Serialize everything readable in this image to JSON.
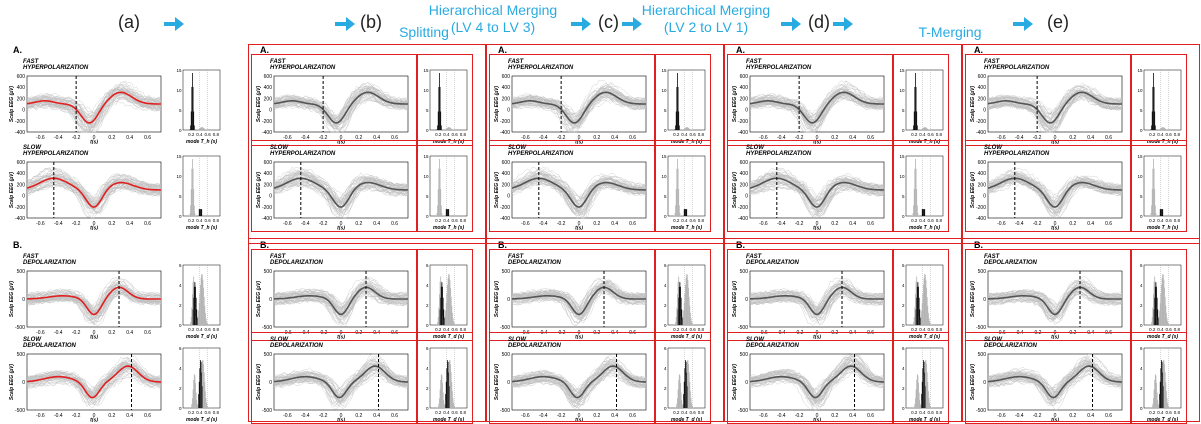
{
  "flow": {
    "stages": [
      "(a)",
      "(b)",
      "(c)",
      "(d)",
      "(e)"
    ],
    "steps": [
      "Splitting",
      "Hierarchical Merging\n(LV 4 to LV 3)",
      "Hierarchical Merging\n(LV 2 to LV 1)",
      "T-Merging"
    ]
  },
  "sections": {
    "a": "A.",
    "b": "B."
  },
  "panels": {
    "fast_hyper": "FAST HYPERPOLARIZATION",
    "slow_hyper": "SLOW HYPERPOLARIZATION",
    "fast_dep": "FAST DEPOLARIZATION",
    "slow_dep": "SLOW DEPOLARIZATION"
  },
  "axes": {
    "ylabel": "Scalp EEG (µV)",
    "xlabel": "t(s)",
    "hist_xlabel_h": "mode T_h (s)",
    "hist_xlabel_d": "mode T_d (s)",
    "x_ticks": [
      "-0.6",
      "-0.4",
      "-0.2",
      "0",
      "0.2",
      "0.4",
      "0.6"
    ],
    "y_ticks_hyper": [
      "600",
      "400",
      "200",
      "0",
      "-200",
      "-400"
    ],
    "y_ticks_dep": [
      "500",
      "0",
      "-500"
    ],
    "hist_x_ticks": [
      "0.2",
      "0.4",
      "0.6",
      "0.8"
    ],
    "hist_y_ticks_hyper": [
      "15",
      "10",
      "5",
      "0"
    ],
    "hist_y_ticks_dep": [
      "6",
      "4",
      "2",
      "0"
    ]
  },
  "colors": {
    "accent": "#29abe2",
    "box": "#e02020",
    "mean_red": "#e02020",
    "mean_dark": "#555555",
    "trace": "#bdbdbd"
  }
}
